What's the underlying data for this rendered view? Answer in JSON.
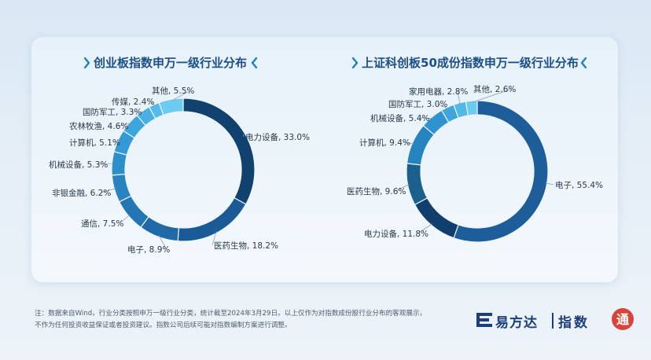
{
  "chart_data": [
    {
      "type": "pie",
      "title": "创业板指数申万一级行业分布",
      "slices": [
        {
          "label": "电力设备",
          "value": 33.0,
          "text": "电力设备, 33.0%",
          "color": "#11416f"
        },
        {
          "label": "医药生物",
          "value": 18.2,
          "text": "医药生物, 18.2%",
          "color": "#1a5a95"
        },
        {
          "label": "电子",
          "value": 8.9,
          "text": "电子, 8.9%",
          "color": "#1f6aa6"
        },
        {
          "label": "通信",
          "value": 7.5,
          "text": "通信, 7.5%",
          "color": "#2376b4"
        },
        {
          "label": "非银金融",
          "value": 6.2,
          "text": "非银金融, 6.2%",
          "color": "#2883c1"
        },
        {
          "label": "机械设备",
          "value": 5.3,
          "text": "机械设备, 5.3%",
          "color": "#2c8fcc"
        },
        {
          "label": "计算机",
          "value": 5.1,
          "text": "计算机, 5.1%",
          "color": "#3499d4"
        },
        {
          "label": "农林牧渔",
          "value": 4.6,
          "text": "农林牧渔, 4.6%",
          "color": "#3ca5dc"
        },
        {
          "label": "国防军工",
          "value": 3.3,
          "text": "国防军工, 3.3%",
          "color": "#47b1e3"
        },
        {
          "label": "传媒",
          "value": 2.4,
          "text": "传媒, 2.4%",
          "color": "#55bce9"
        },
        {
          "label": "其他",
          "value": 5.5,
          "text": "其他, 5.5%",
          "color": "#6ccbf0"
        }
      ]
    },
    {
      "type": "pie",
      "title": "上证科创板50成份指数申万一级行业分布",
      "slices": [
        {
          "label": "电子",
          "value": 55.4,
          "text": "电子, 55.4%",
          "color": "#1c5d9a"
        },
        {
          "label": "电力设备",
          "value": 11.8,
          "text": "电力设备, 11.8%",
          "color": "#103f6e"
        },
        {
          "label": "医药生物",
          "value": 9.6,
          "text": "医药生物, 9.6%",
          "color": "#1b5f8c"
        },
        {
          "label": "计算机",
          "value": 9.4,
          "text": "计算机, 9.4%",
          "color": "#2583c0"
        },
        {
          "label": "机械设备",
          "value": 5.4,
          "text": "机械设备, 5.4%",
          "color": "#2f93cf"
        },
        {
          "label": "国防军工",
          "value": 3.0,
          "text": "国防军工, 3.0%",
          "color": "#3fa6dc"
        },
        {
          "label": "家用电器",
          "value": 2.8,
          "text": "家用电器, 2.8%",
          "color": "#52b8e6"
        },
        {
          "label": "其他",
          "value": 2.6,
          "text": "其他, 2.6%",
          "color": "#6ccbf0"
        }
      ]
    }
  ],
  "footnote": {
    "line1": "注：数据来自Wind，行业分类按照申万一级行业分类，统计截至2024年3月29日。以上仅作为对指数成份股行业分布的客观展示，",
    "line2": "不作为任何投资收益保证或者投资建议。指数公司后续可能对指数编制方案进行调整。"
  },
  "logo": {
    "brand": "易方达",
    "product": "指数",
    "badge": "通",
    "brand_color": "#1c3f7c",
    "badge_color": "#d6443a"
  }
}
